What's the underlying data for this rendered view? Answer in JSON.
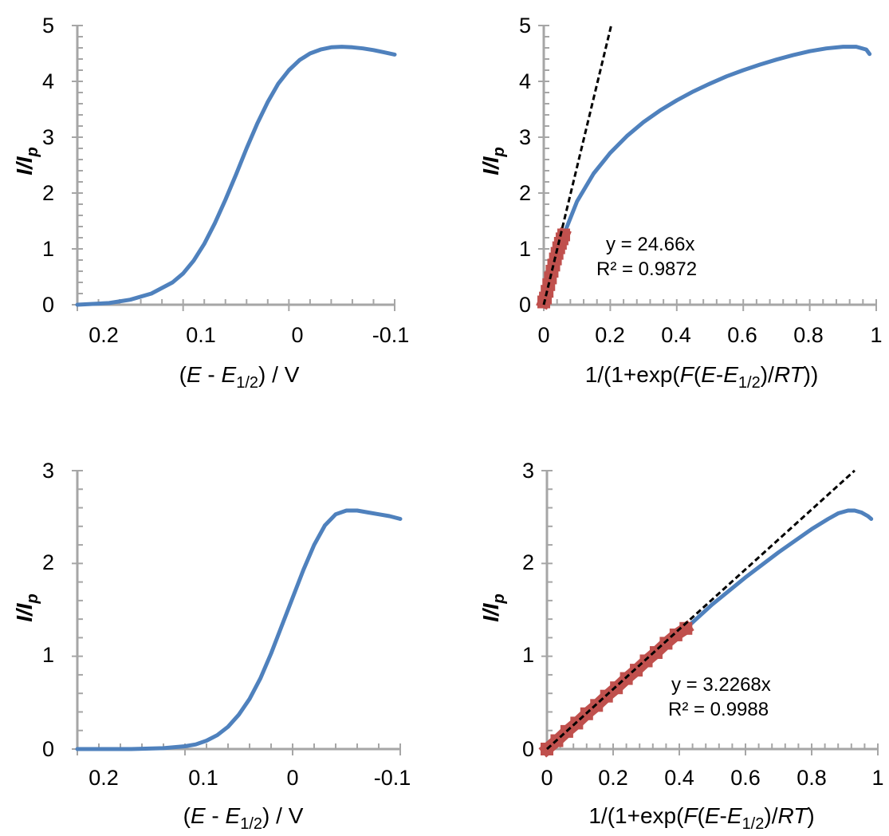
{
  "charts": [
    {
      "id": "tl",
      "chart_data": {
        "type": "line",
        "xlim": [
          0.2,
          -0.1
        ],
        "ylim": [
          0,
          5
        ],
        "x_ticks": [
          "0.2",
          "0.1",
          "0",
          "-0.1"
        ],
        "y_ticks": [
          "0",
          "1",
          "2",
          "3",
          "4",
          "5"
        ],
        "xlabel": {
          "open": "(",
          "E": "E",
          "dash": " - ",
          "E2": "E",
          "sub": "1/2",
          "close": ") / V"
        },
        "ylabel": {
          "main": "I/I",
          "sub": "p"
        },
        "series": [
          {
            "color": "#4f81bd",
            "x": [
              0.2,
              0.17,
              0.15,
              0.13,
              0.11,
              0.1,
              0.09,
              0.08,
              0.07,
              0.06,
              0.05,
              0.04,
              0.03,
              0.02,
              0.01,
              0.0,
              -0.01,
              -0.02,
              -0.03,
              -0.04,
              -0.05,
              -0.06,
              -0.07,
              -0.08,
              -0.09,
              -0.1
            ],
            "y": [
              0.0,
              0.03,
              0.09,
              0.2,
              0.4,
              0.56,
              0.79,
              1.09,
              1.46,
              1.88,
              2.33,
              2.8,
              3.24,
              3.63,
              3.96,
              4.2,
              4.38,
              4.5,
              4.57,
              4.61,
              4.62,
              4.61,
              4.59,
              4.56,
              4.52,
              4.48
            ]
          }
        ]
      }
    },
    {
      "id": "tr",
      "chart_data": {
        "type": "scatter",
        "xlim": [
          0,
          1
        ],
        "ylim": [
          0,
          5
        ],
        "x_ticks": [
          "0",
          "0.2",
          "0.4",
          "0.6",
          "0.8",
          "1"
        ],
        "y_ticks": [
          "0",
          "1",
          "2",
          "3",
          "4",
          "5"
        ],
        "xlabel": {
          "pre": "1/(1+exp(",
          "F": "F",
          "mid": "(",
          "E": "E",
          "dash": "-",
          "E2": "E",
          "sub": "1/2",
          "slash": ")/",
          "RT": "RT",
          "close": "))"
        },
        "ylabel": {
          "main": "I/I",
          "sub": "p"
        },
        "series": [
          {
            "color": "#4f81bd",
            "x": [
              0.06,
              0.1,
              0.15,
              0.2,
              0.25,
              0.3,
              0.35,
              0.4,
              0.45,
              0.5,
              0.55,
              0.6,
              0.65,
              0.7,
              0.75,
              0.8,
              0.85,
              0.9,
              0.94,
              0.97,
              0.98
            ],
            "y": [
              1.25,
              1.85,
              2.35,
              2.72,
              3.02,
              3.27,
              3.48,
              3.66,
              3.82,
              3.96,
              4.09,
              4.2,
              4.3,
              4.39,
              4.47,
              4.54,
              4.59,
              4.62,
              4.62,
              4.57,
              4.49
            ]
          },
          {
            "color": "#c0504d",
            "x": [
              0.0,
              0.005,
              0.01,
              0.015,
              0.02,
              0.025,
              0.03,
              0.035,
              0.04,
              0.045,
              0.05,
              0.055,
              0.06
            ],
            "y": [
              0.05,
              0.12,
              0.24,
              0.36,
              0.48,
              0.6,
              0.71,
              0.82,
              0.92,
              1.02,
              1.1,
              1.18,
              1.25
            ]
          }
        ],
        "trendline": {
          "slope": 24.66,
          "x": [
            0.0,
            0.2028
          ],
          "color": "#000000"
        },
        "annotation": {
          "eq": "y = 24.66x",
          "r2": "R² = 0.9872"
        }
      }
    },
    {
      "id": "bl",
      "chart_data": {
        "type": "line",
        "xlim": [
          0.2,
          -0.1
        ],
        "ylim": [
          0,
          3
        ],
        "x_ticks": [
          "0.2",
          "0.1",
          "0",
          "-0.1"
        ],
        "y_ticks": [
          "0",
          "1",
          "2",
          "3"
        ],
        "xlabel": {
          "open": "(",
          "E": "E",
          "dash": " - ",
          "E2": "E",
          "sub": "1/2",
          "close": ") / V"
        },
        "ylabel": {
          "main": "I/I",
          "sub": "p"
        },
        "series": [
          {
            "color": "#4f81bd",
            "x": [
              0.2,
              0.15,
              0.12,
              0.1,
              0.09,
              0.08,
              0.07,
              0.06,
              0.05,
              0.04,
              0.03,
              0.02,
              0.01,
              0.0,
              -0.01,
              -0.02,
              -0.03,
              -0.04,
              -0.05,
              -0.06,
              -0.07,
              -0.08,
              -0.09,
              -0.1
            ],
            "y": [
              0.0,
              0.0,
              0.01,
              0.03,
              0.05,
              0.09,
              0.15,
              0.24,
              0.37,
              0.54,
              0.76,
              1.03,
              1.33,
              1.63,
              1.93,
              2.2,
              2.41,
              2.53,
              2.57,
              2.57,
              2.55,
              2.53,
              2.51,
              2.48
            ]
          }
        ]
      }
    },
    {
      "id": "br",
      "chart_data": {
        "type": "scatter",
        "xlim": [
          0,
          1
        ],
        "ylim": [
          0,
          3
        ],
        "x_ticks": [
          "0",
          "0.2",
          "0.4",
          "0.6",
          "0.8",
          "1"
        ],
        "y_ticks": [
          "0",
          "1",
          "2",
          "3"
        ],
        "xlabel": {
          "pre": "1/(1+exp(",
          "F": "F",
          "mid": "(",
          "E": "E",
          "dash": "-",
          "E2": "E",
          "sub": "1/2",
          "slash": ")/",
          "RT": "RT",
          "close": ")"
        },
        "ylabel": {
          "main": "I/I",
          "sub": "p"
        },
        "series": [
          {
            "color": "#4f81bd",
            "x": [
              0.42,
              0.5,
              0.6,
              0.7,
              0.8,
              0.85,
              0.88,
              0.91,
              0.93,
              0.95,
              0.97,
              0.98
            ],
            "y": [
              1.3,
              1.56,
              1.85,
              2.12,
              2.37,
              2.48,
              2.54,
              2.57,
              2.57,
              2.55,
              2.51,
              2.48
            ]
          },
          {
            "color": "#c0504d",
            "x": [
              0.0,
              0.03,
              0.06,
              0.09,
              0.12,
              0.15,
              0.18,
              0.21,
              0.24,
              0.27,
              0.3,
              0.33,
              0.36,
              0.39,
              0.42
            ],
            "y": [
              0.0,
              0.09,
              0.19,
              0.28,
              0.38,
              0.47,
              0.57,
              0.66,
              0.76,
              0.85,
              0.95,
              1.04,
              1.14,
              1.23,
              1.3
            ]
          }
        ],
        "trendline": {
          "slope": 3.2268,
          "x": [
            0.0,
            0.93
          ],
          "color": "#000000"
        },
        "annotation": {
          "eq": "y = 3.2268x",
          "r2": "R² = 0.9988"
        }
      }
    }
  ]
}
